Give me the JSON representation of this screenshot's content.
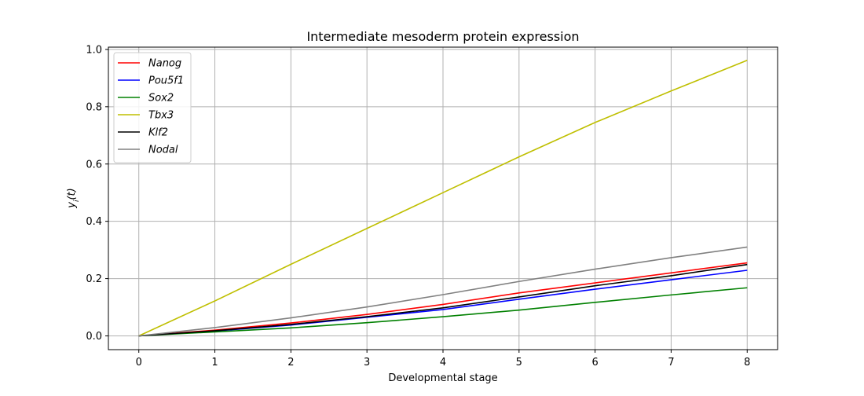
{
  "chart_data": {
    "type": "line",
    "title": "Intermediate mesoderm protein expression",
    "xlabel": "Developmental stage",
    "ylabel": "y_i(t)",
    "xlim": [
      -0.4,
      8.4
    ],
    "ylim": [
      -0.048,
      1.008
    ],
    "x_ticks": [
      "0",
      "1",
      "2",
      "3",
      "4",
      "5",
      "6",
      "7",
      "8"
    ],
    "y_ticks": [
      "0.0",
      "0.2",
      "0.4",
      "0.6",
      "0.8",
      "1.0"
    ],
    "grid": true,
    "legend_position": "upper-left",
    "x": [
      0,
      1,
      2,
      3,
      4,
      5,
      6,
      7,
      8
    ],
    "series": [
      {
        "name": "Nanog",
        "color": "#ff0000",
        "values": [
          0.0,
          0.02,
          0.045,
          0.075,
          0.11,
          0.15,
          0.185,
          0.22,
          0.255
        ]
      },
      {
        "name": "Pou5f1",
        "color": "#0000ff",
        "values": [
          0.0,
          0.017,
          0.038,
          0.065,
          0.092,
          0.128,
          0.163,
          0.196,
          0.229
        ]
      },
      {
        "name": "Sox2",
        "color": "#008000",
        "values": [
          0.0,
          0.014,
          0.028,
          0.046,
          0.067,
          0.09,
          0.117,
          0.143,
          0.168
        ]
      },
      {
        "name": "Tbx3",
        "color": "#bfbf00",
        "values": [
          0.0,
          0.122,
          0.25,
          0.375,
          0.5,
          0.625,
          0.745,
          0.855,
          0.962
        ]
      },
      {
        "name": "Klf2",
        "color": "#000000",
        "values": [
          0.0,
          0.018,
          0.04,
          0.067,
          0.098,
          0.136,
          0.175,
          0.21,
          0.249
        ]
      },
      {
        "name": "Nodal",
        "color": "#808080",
        "values": [
          0.0,
          0.029,
          0.063,
          0.101,
          0.144,
          0.19,
          0.233,
          0.273,
          0.31
        ]
      }
    ]
  }
}
